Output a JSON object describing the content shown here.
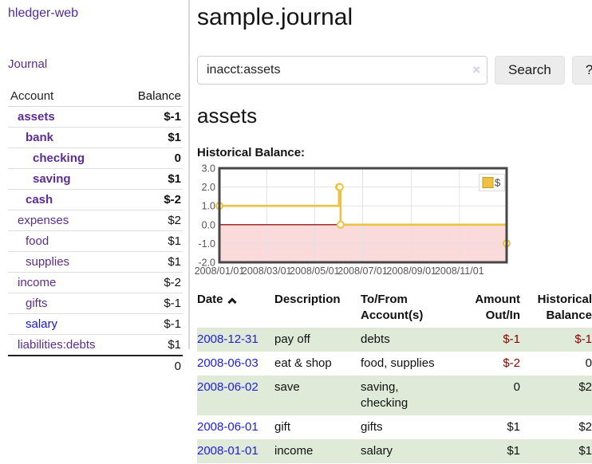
{
  "app": {
    "brand": "hledger-web",
    "title": "sample.journal"
  },
  "sidebar": {
    "journal_link": "Journal",
    "header": {
      "account": "Account",
      "balance": "Balance"
    },
    "accounts": [
      {
        "name": "assets",
        "balance": "$-1"
      },
      {
        "name": "bank",
        "balance": "$1"
      },
      {
        "name": "checking",
        "balance": "0"
      },
      {
        "name": "saving",
        "balance": "$1"
      },
      {
        "name": "cash",
        "balance": "$-2"
      },
      {
        "name": "expenses",
        "balance": "$2"
      },
      {
        "name": "food",
        "balance": "$1"
      },
      {
        "name": "supplies",
        "balance": "$1"
      },
      {
        "name": "income",
        "balance": "$-2"
      },
      {
        "name": "gifts",
        "balance": "$-1"
      },
      {
        "name": "salary",
        "balance": "$-1"
      },
      {
        "name": "liabilities:debts",
        "balance": "$1"
      }
    ],
    "total": "0"
  },
  "search": {
    "value": "inacct:assets",
    "clear_icon": "×",
    "button_label": "Search",
    "help_label": "?"
  },
  "account_page": {
    "heading": "assets",
    "chart_title": "Historical Balance:"
  },
  "chart_data": {
    "type": "line",
    "step": true,
    "title": "Historical Balance",
    "legend": {
      "position": "top-right",
      "entries": [
        "$"
      ]
    },
    "series": [
      {
        "name": "$",
        "color": "#edc240",
        "points": [
          [
            "2008-01-01",
            1
          ],
          [
            "2008-06-01",
            2
          ],
          [
            "2008-06-02",
            2
          ],
          [
            "2008-06-03",
            0
          ],
          [
            "2008-12-31",
            -1
          ]
        ]
      }
    ],
    "ylim": [
      -2,
      3
    ],
    "ytick_values": [
      3,
      2,
      1,
      0,
      -1,
      -2
    ],
    "yticks": [
      "3.0",
      "2.0",
      "1.0",
      "0.0",
      "-1.0",
      "-2.0"
    ],
    "xlim": [
      "2008-01-01",
      "2008-12-31"
    ],
    "xtick_dates": [
      "2008-01-01",
      "2008-03-01",
      "2008-05-01",
      "2008-07-01",
      "2008-09-01",
      "2008-11-01"
    ],
    "xticks": [
      "2008/01/01",
      "2008/03/01",
      "2008/05/01",
      "2008/07/01",
      "2008/09/01",
      "2008/11/01"
    ],
    "grid": true,
    "colors": {
      "negative_fill": "#fadada",
      "zero_line": "#911717",
      "grid": "#e2e2e2",
      "border": "#474747"
    }
  },
  "register": {
    "columns": {
      "date": "Date",
      "description": "Description",
      "accounts_l1": "To/From",
      "accounts_l2": "Account(s)",
      "amount_l1": "Amount",
      "amount_l2": "Out/In",
      "balance_l1": "Historical",
      "balance_l2": "Balance"
    },
    "rows": [
      {
        "date": "2008-12-31",
        "description": "pay off",
        "accounts": "debts",
        "amount": "$-1",
        "balance": "$-1"
      },
      {
        "date": "2008-06-03",
        "description": "eat & shop",
        "accounts": "food, supplies",
        "amount": "$-2",
        "balance": "0"
      },
      {
        "date": "2008-06-02",
        "description": "save",
        "accounts": "saving, checking",
        "amount": "0",
        "balance": "$2"
      },
      {
        "date": "2008-06-01",
        "description": "gift",
        "accounts": "gifts",
        "amount": "$1",
        "balance": "$2"
      },
      {
        "date": "2008-01-01",
        "description": "income",
        "accounts": "salary",
        "amount": "$1",
        "balance": "$1"
      }
    ]
  }
}
